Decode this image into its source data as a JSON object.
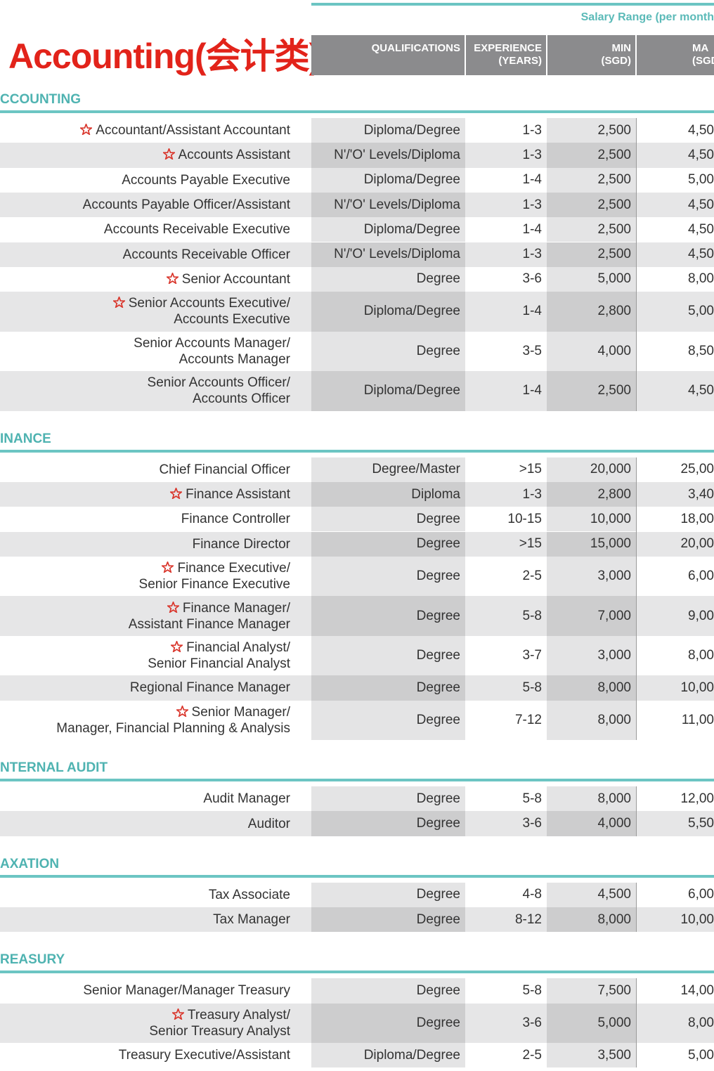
{
  "header": {
    "title": "Accounting(会计类)",
    "salary_range": "Salary Range (per month",
    "columns": {
      "qualifications": [
        "QUALIFICATIONS"
      ],
      "experience": [
        "EXPERIENCE",
        "(YEARS)"
      ],
      "min": [
        "MIN",
        "(SGD)"
      ],
      "max": [
        "MA",
        "(SGD"
      ]
    }
  },
  "sections": [
    {
      "heading": "CCOUNTING",
      "rows": [
        {
          "title": [
            "Accountant/Assistant Accountant"
          ],
          "star": true,
          "qualification": "Diploma/Degree",
          "experience": "1-3",
          "min": "2,500",
          "max": "4,50"
        },
        {
          "title": [
            "Accounts Assistant"
          ],
          "star": true,
          "qualification": "N'/'O' Levels/Diploma",
          "experience": "1-3",
          "min": "2,500",
          "max": "4,50"
        },
        {
          "title": [
            "Accounts Payable Executive"
          ],
          "star": false,
          "qualification": "Diploma/Degree",
          "experience": "1-4",
          "min": "2,500",
          "max": "5,00"
        },
        {
          "title": [
            "Accounts Payable Officer/Assistant"
          ],
          "star": false,
          "qualification": "N'/'O' Levels/Diploma",
          "experience": "1-3",
          "min": "2,500",
          "max": "4,50"
        },
        {
          "title": [
            "Accounts Receivable Executive"
          ],
          "star": false,
          "qualification": "Diploma/Degree",
          "experience": "1-4",
          "min": "2,500",
          "max": "4,50"
        },
        {
          "title": [
            "Accounts Receivable Officer"
          ],
          "star": false,
          "qualification": "N'/'O' Levels/Diploma",
          "experience": "1-3",
          "min": "2,500",
          "max": "4,50"
        },
        {
          "title": [
            "Senior Accountant"
          ],
          "star": true,
          "qualification": "Degree",
          "experience": "3-6",
          "min": "5,000",
          "max": "8,00"
        },
        {
          "title": [
            "Senior Accounts Executive/",
            "Accounts Executive"
          ],
          "star": true,
          "qualification": "Diploma/Degree",
          "experience": "1-4",
          "min": "2,800",
          "max": "5,00"
        },
        {
          "title": [
            "Senior Accounts Manager/",
            "Accounts Manager"
          ],
          "star": false,
          "qualification": "Degree",
          "experience": "3-5",
          "min": "4,000",
          "max": "8,50"
        },
        {
          "title": [
            "Senior Accounts Officer/",
            "Accounts Officer"
          ],
          "star": false,
          "qualification": "Diploma/Degree",
          "experience": "1-4",
          "min": "2,500",
          "max": "4,50"
        }
      ]
    },
    {
      "heading": "INANCE",
      "rows": [
        {
          "title": [
            "Chief Financial Officer"
          ],
          "star": false,
          "qualification": "Degree/Master",
          "experience": ">15",
          "min": "20,000",
          "max": "25,00"
        },
        {
          "title": [
            "Finance Assistant"
          ],
          "star": true,
          "qualification": "Diploma",
          "experience": "1-3",
          "min": "2,800",
          "max": "3,40"
        },
        {
          "title": [
            "Finance Controller"
          ],
          "star": false,
          "qualification": "Degree",
          "experience": "10-15",
          "min": "10,000",
          "max": "18,00"
        },
        {
          "title": [
            "Finance Director"
          ],
          "star": false,
          "qualification": "Degree",
          "experience": ">15",
          "min": "15,000",
          "max": "20,00"
        },
        {
          "title": [
            "Finance Executive/",
            "Senior Finance Executive"
          ],
          "star": true,
          "qualification": "Degree",
          "experience": "2-5",
          "min": "3,000",
          "max": "6,00"
        },
        {
          "title": [
            "Finance Manager/",
            "Assistant Finance Manager"
          ],
          "star": true,
          "qualification": "Degree",
          "experience": "5-8",
          "min": "7,000",
          "max": "9,00"
        },
        {
          "title": [
            "Financial Analyst/",
            "Senior Financial Analyst"
          ],
          "star": true,
          "qualification": "Degree",
          "experience": "3-7",
          "min": "3,000",
          "max": "8,00"
        },
        {
          "title": [
            "Regional Finance Manager"
          ],
          "star": false,
          "qualification": "Degree",
          "experience": "5-8",
          "min": "8,000",
          "max": "10,00"
        },
        {
          "title": [
            "Senior Manager/",
            "Manager, Financial Planning & Analysis"
          ],
          "star": true,
          "qualification": "Degree",
          "experience": "7-12",
          "min": "8,000",
          "max": "11,00"
        }
      ]
    },
    {
      "heading": "NTERNAL AUDIT",
      "rows": [
        {
          "title": [
            "Audit Manager"
          ],
          "star": false,
          "qualification": "Degree",
          "experience": "5-8",
          "min": "8,000",
          "max": "12,00"
        },
        {
          "title": [
            "Auditor"
          ],
          "star": false,
          "qualification": "Degree",
          "experience": "3-6",
          "min": "4,000",
          "max": "5,50"
        }
      ]
    },
    {
      "heading": "AXATION",
      "rows": [
        {
          "title": [
            "Tax Associate"
          ],
          "star": false,
          "qualification": "Degree",
          "experience": "4-8",
          "min": "4,500",
          "max": "6,00"
        },
        {
          "title": [
            "Tax Manager"
          ],
          "star": false,
          "qualification": "Degree",
          "experience": "8-12",
          "min": "8,000",
          "max": "10,00"
        }
      ]
    },
    {
      "heading": "REASURY",
      "rows": [
        {
          "title": [
            "Senior Manager/Manager Treasury"
          ],
          "star": false,
          "qualification": "Degree",
          "experience": "5-8",
          "min": "7,500",
          "max": "14,00"
        },
        {
          "title": [
            "Treasury Analyst/",
            "Senior Treasury Analyst"
          ],
          "star": true,
          "qualification": "Degree",
          "experience": "3-6",
          "min": "5,000",
          "max": "8,00"
        },
        {
          "title": [
            "Treasury Executive/Assistant"
          ],
          "star": false,
          "qualification": "Diploma/Degree",
          "experience": "2-5",
          "min": "3,500",
          "max": "5,00"
        }
      ]
    }
  ]
}
